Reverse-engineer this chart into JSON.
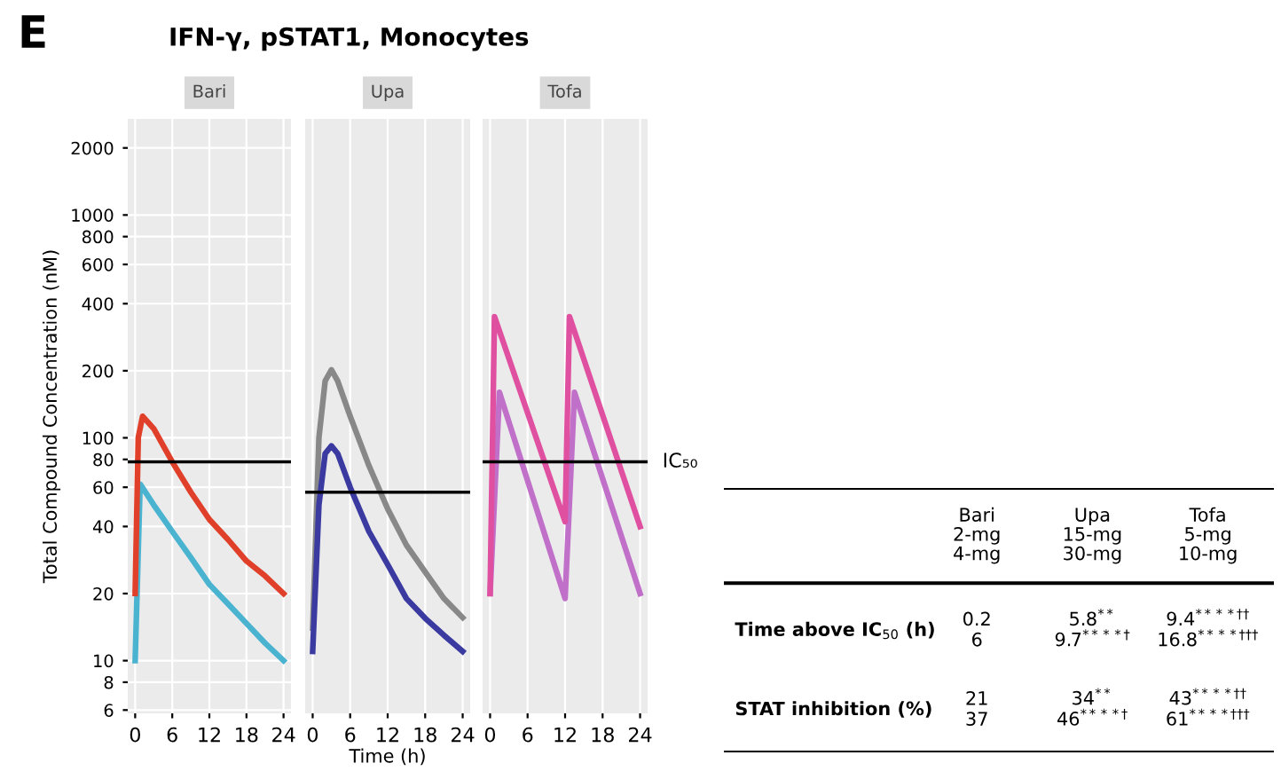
{
  "chart_data": [
    {
      "type": "line",
      "title": "IFN-γ, pSTAT1, Monocytes",
      "subtitle": "Bari",
      "annotations": [
        "E"
      ],
      "ylabel": "Total Compound Concentration (nM)",
      "log": true,
      "grid": true,
      "xlim": [
        -1.2,
        25.2
      ],
      "xticks": [
        0,
        6,
        12,
        18,
        24
      ],
      "ylim": [
        5.8,
        2700
      ],
      "yticks": [
        6,
        8,
        10,
        20,
        40,
        60,
        80,
        100,
        200,
        400,
        600,
        800,
        1000,
        2000
      ],
      "series": [
        {
          "color": "#4ab3d0",
          "x": [
            0,
            0.8,
            3,
            6,
            9,
            12,
            15,
            18,
            21,
            24
          ],
          "values": [
            10,
            62,
            50,
            38,
            29,
            22,
            18,
            14.7,
            12,
            10
          ]
        },
        {
          "color": "#e0402a",
          "x": [
            0,
            0.5,
            1.2,
            3,
            6,
            9,
            12,
            15,
            18,
            21,
            24
          ],
          "values": [
            20,
            100,
            125,
            110,
            78,
            57,
            43,
            35,
            28,
            24,
            20
          ]
        }
      ],
      "ref_lines": [
        {
          "axis": "y",
          "value": 78,
          "color": "#000000"
        }
      ]
    },
    {
      "type": "line",
      "subtitle": "Upa",
      "xlabel": "Time (h)",
      "log": true,
      "grid": true,
      "tick_labels": "x",
      "xlim": [
        -1.2,
        25.2
      ],
      "xticks": [
        0,
        6,
        12,
        18,
        24
      ],
      "ylim": [
        5.8,
        2700
      ],
      "series": [
        {
          "color": "#888888",
          "x": [
            0,
            1,
            2,
            3,
            4,
            6,
            9,
            12,
            15,
            18,
            21,
            24
          ],
          "values": [
            14,
            100,
            180,
            202,
            180,
            125,
            75,
            48,
            33,
            25,
            19,
            15.6
          ]
        },
        {
          "color": "#3a3aa0",
          "x": [
            0,
            1,
            2,
            3,
            4,
            6,
            9,
            12,
            15,
            18,
            21,
            24
          ],
          "values": [
            11,
            50,
            85,
            92,
            85,
            60,
            38,
            27,
            19,
            15.5,
            13,
            11
          ]
        }
      ],
      "ref_lines": [
        {
          "axis": "y",
          "value": 57,
          "color": "#000000"
        }
      ]
    },
    {
      "type": "line",
      "subtitle": "Tofa",
      "log": true,
      "grid": true,
      "tick_labels": "x",
      "xlim": [
        -1.2,
        25.2
      ],
      "xticks": [
        0,
        6,
        12,
        18,
        24
      ],
      "ylim": [
        5.8,
        2700
      ],
      "series": [
        {
          "color": "#c070c8",
          "x": [
            0,
            1.5,
            12,
            13.5,
            24
          ],
          "values": [
            20,
            160,
            19,
            160,
            20
          ]
        },
        {
          "color": "#e050a0",
          "x": [
            0,
            0.7,
            12,
            12.7,
            24
          ],
          "values": [
            20,
            350,
            42,
            350,
            40
          ]
        }
      ],
      "ref_lines": [
        {
          "axis": "y",
          "value": 78,
          "color": "#000000",
          "label": "IC₅₀"
        }
      ]
    },
    {
      "type": "other",
      "categories": [
        "Bari\n2-mg\n4-mg",
        "Upa\n15-mg\n30-mg",
        "Tofa\n5-mg\n10-mg"
      ],
      "y_categories": [
        "Time above IC$_{50}$ (h)",
        "STAT inhibition (%)"
      ],
      "cell_labels": [
        [
          "0.2\n6",
          "5.8$^{**}$\n9.7$^{****†}$",
          "9.4$^{****††}$\n16.8$^{****†††}$"
        ],
        [
          "21\n37",
          "34$^{**}$\n46$^{****†}$",
          "43$^{****††}$\n61$^{****†††}$"
        ]
      ]
    }
  ]
}
